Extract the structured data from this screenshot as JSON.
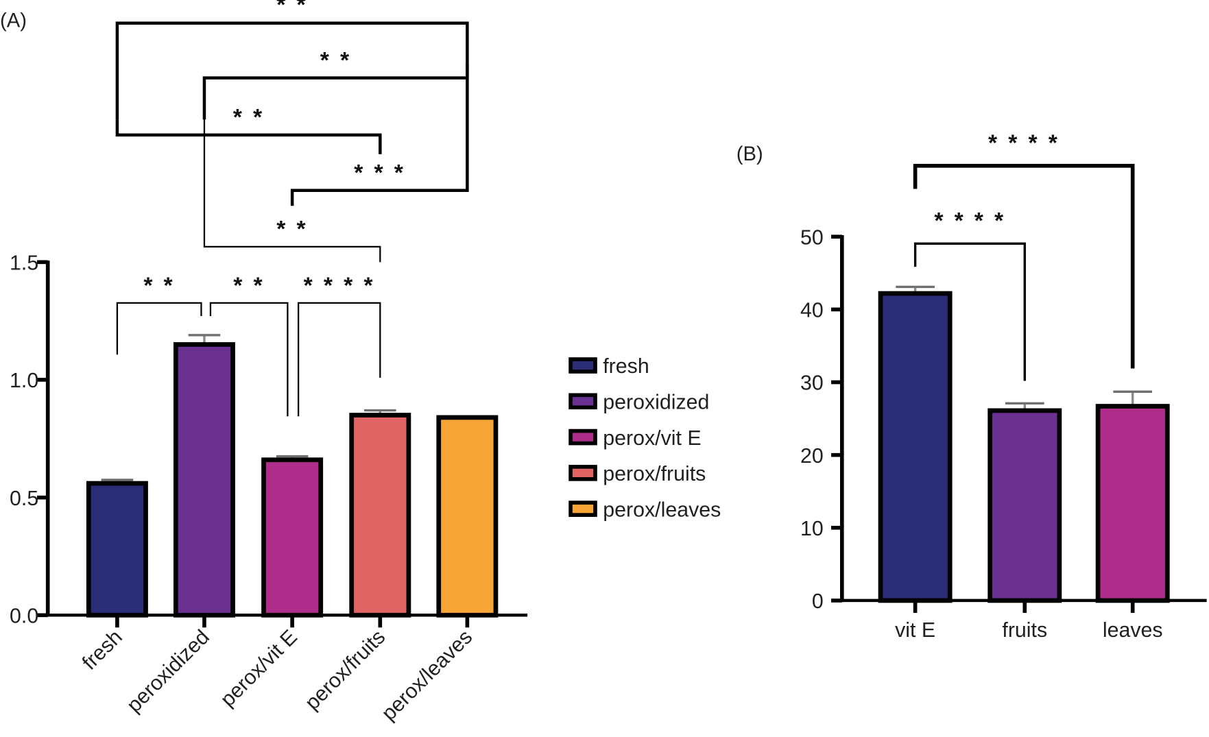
{
  "chart_data": [
    {
      "id": "A",
      "type": "bar",
      "panel_label": "(A)",
      "title": "",
      "xlabel": "",
      "ylabel": "",
      "categories": [
        "fresh",
        "peroxidized",
        "perox/vit E",
        "perox/fruits",
        "perox/leaves"
      ],
      "values": [
        0.56,
        1.15,
        0.66,
        0.85,
        0.84
      ],
      "errors": [
        0.015,
        0.04,
        0.015,
        0.02,
        0.005
      ],
      "colors": [
        "#2b2d77",
        "#6a3190",
        "#ae2d8a",
        "#e06464",
        "#f7a537"
      ],
      "ylim": [
        0,
        1.5
      ],
      "yticks": [
        0.0,
        0.5,
        1.0,
        1.5
      ],
      "ytick_labels": [
        "0.0",
        "0.5",
        "1.0",
        "1.5"
      ],
      "grid": false,
      "legend": {
        "position": "right",
        "entries": [
          "fresh",
          "peroxidized",
          "perox/vit E",
          "perox/fruits",
          "perox/leaves"
        ]
      },
      "significance": [
        {
          "from": "fresh",
          "to": "perox/leaves",
          "label": "**"
        },
        {
          "from": "peroxidized",
          "to": "perox/leaves",
          "label": "**"
        },
        {
          "from": "fresh",
          "to": "perox/fruits",
          "label": "**"
        },
        {
          "from": "perox/vit E",
          "to": "perox/leaves",
          "label": "***"
        },
        {
          "from": "peroxidized",
          "to": "perox/fruits",
          "label": "**"
        },
        {
          "from": "fresh",
          "to": "peroxidized",
          "label": "**"
        },
        {
          "from": "peroxidized",
          "to": "perox/vit E",
          "label": "**"
        },
        {
          "from": "perox/vit E",
          "to": "perox/fruits",
          "label": "****"
        }
      ]
    },
    {
      "id": "B",
      "type": "bar",
      "panel_label": "(B)",
      "title": "",
      "xlabel": "",
      "ylabel": "",
      "categories": [
        "vit E",
        "fruits",
        "leaves"
      ],
      "values": [
        42.2,
        26.1,
        26.7
      ],
      "errors": [
        0.9,
        1.0,
        2.0
      ],
      "colors": [
        "#2b2d77",
        "#6a3190",
        "#ae2d8a"
      ],
      "ylim": [
        0,
        50
      ],
      "yticks": [
        0,
        10,
        20,
        30,
        40,
        50
      ],
      "ytick_labels": [
        "0",
        "10",
        "20",
        "30",
        "40",
        "50"
      ],
      "grid": false,
      "legend": null,
      "significance": [
        {
          "from": "vit E",
          "to": "leaves",
          "label": "****"
        },
        {
          "from": "vit E",
          "to": "fruits",
          "label": "****"
        }
      ]
    }
  ]
}
